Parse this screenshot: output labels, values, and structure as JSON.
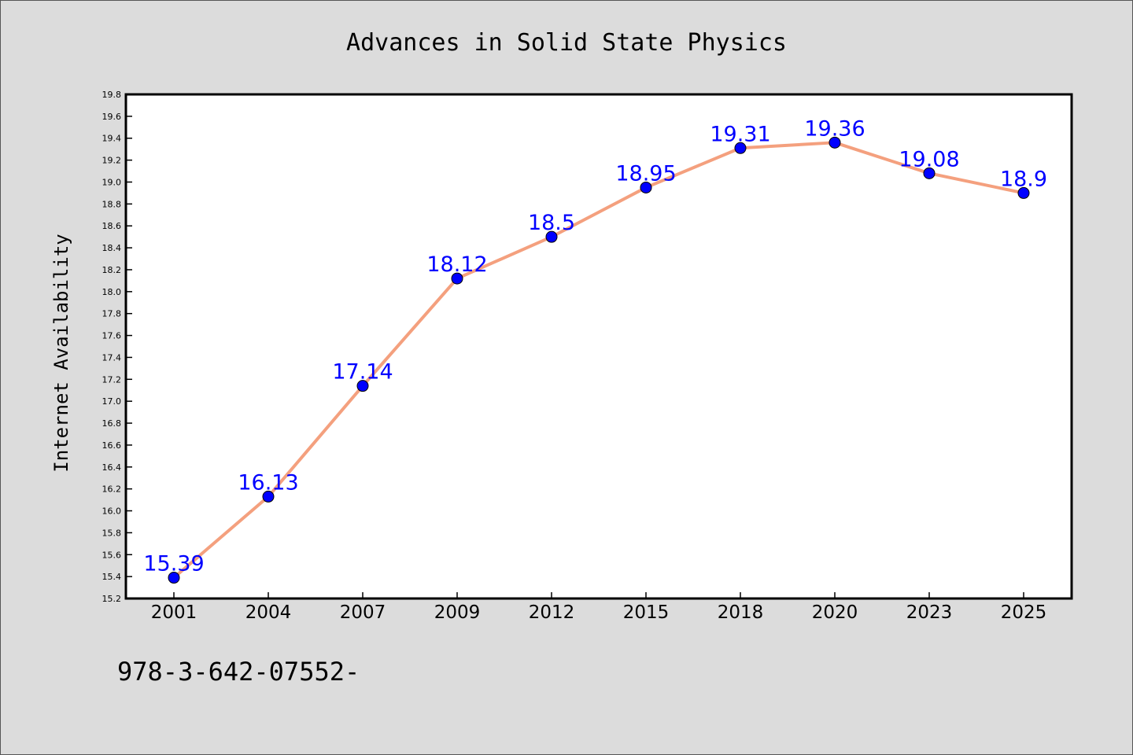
{
  "chart_data": {
    "type": "line",
    "title": "Advances in Solid State Physics",
    "xlabel": "",
    "ylabel": "Internet Availability",
    "categories": [
      "2001",
      "2004",
      "2007",
      "2009",
      "2012",
      "2015",
      "2018",
      "2020",
      "2023",
      "2025"
    ],
    "series": [
      {
        "values": [
          15.39,
          16.13,
          17.14,
          18.12,
          18.5,
          18.95,
          19.31,
          19.36,
          19.08,
          18.9
        ],
        "labels": [
          "15.39",
          "16.13",
          "17.14",
          "18.12",
          "18.5",
          "18.95",
          "19.31",
          "19.36",
          "19.08",
          "18.9"
        ],
        "line_color": "#f4a07e",
        "marker_color": "#0000ff",
        "label_color": "#0000ff"
      }
    ],
    "ylim": [
      15.2,
      19.8
    ],
    "yticks": [
      "15.2",
      "15.4",
      "15.6",
      "15.8",
      "16.0",
      "16.2",
      "16.4",
      "16.6",
      "16.8",
      "17.0",
      "17.2",
      "17.4",
      "17.6",
      "17.8",
      "18.0",
      "18.2",
      "18.4",
      "18.6",
      "18.8",
      "19.0",
      "19.2",
      "19.4",
      "19.6",
      "19.8"
    ],
    "grid": false,
    "legend": "none"
  },
  "footer_text": "978-3-642-07552-",
  "colors": {
    "background": "#dcdcdc",
    "plot_background": "#ffffff"
  }
}
